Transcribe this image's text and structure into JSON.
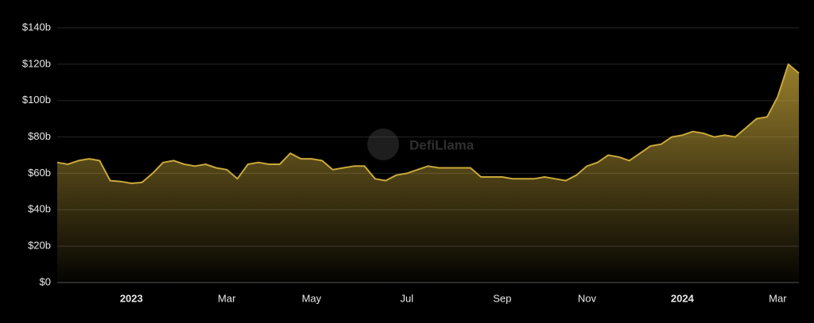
{
  "chart_data": {
    "type": "area",
    "watermark": "DefiLlama",
    "categories": [
      null,
      null,
      null,
      null,
      null,
      null,
      null,
      "2023",
      null,
      null,
      null,
      null,
      null,
      null,
      null,
      null,
      "Mar",
      null,
      null,
      null,
      null,
      null,
      null,
      null,
      "May",
      null,
      null,
      null,
      null,
      null,
      null,
      null,
      null,
      "Jul",
      null,
      null,
      null,
      null,
      null,
      null,
      null,
      null,
      "Sep",
      null,
      null,
      null,
      null,
      null,
      null,
      null,
      "Nov",
      null,
      null,
      null,
      null,
      null,
      null,
      null,
      null,
      "2024",
      null,
      null,
      null,
      null,
      null,
      null,
      null,
      null,
      "Mar",
      null,
      null
    ],
    "series": [
      {
        "color": "#c9a83a",
        "values": [
          66,
          65,
          67,
          68,
          67,
          56,
          55.5,
          54.5,
          55,
          60,
          66,
          67,
          65,
          64,
          65,
          63,
          62,
          57,
          65,
          66,
          65,
          65,
          71,
          68,
          68,
          67,
          62,
          63,
          64,
          64,
          57,
          56,
          59,
          60,
          62,
          64,
          63,
          63,
          63,
          63,
          58,
          58,
          58,
          57,
          57,
          57,
          58,
          57,
          56,
          59,
          64,
          66,
          70,
          69,
          67,
          71,
          75,
          76,
          80,
          81,
          83,
          82,
          80,
          81,
          80,
          85,
          90,
          91,
          102,
          120,
          115
        ]
      }
    ],
    "ylim": [
      0,
      140
    ],
    "yticks": [
      {
        "value": 0,
        "label": "$0"
      },
      {
        "value": 20,
        "label": "$20b"
      },
      {
        "value": 40,
        "label": "$40b"
      },
      {
        "value": 60,
        "label": "$60b"
      },
      {
        "value": 80,
        "label": "$80b"
      },
      {
        "value": 100,
        "label": "$100b"
      },
      {
        "value": 120,
        "label": "$120b"
      },
      {
        "value": 140,
        "label": "$140b"
      }
    ],
    "grid": true
  }
}
